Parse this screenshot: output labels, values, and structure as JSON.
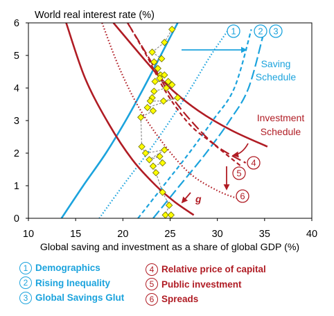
{
  "chart_data": {
    "type": "line",
    "ylabel": "World real interest rate (%)",
    "xlabel": "Global saving and investment as a share of global GDP (%)",
    "xlim": [
      10,
      40
    ],
    "ylim": [
      0,
      6
    ],
    "xticks": [
      "10",
      "15",
      "20",
      "25",
      "30",
      "35",
      "40"
    ],
    "yticks": [
      "0",
      "1",
      "2",
      "3",
      "4",
      "5",
      "6"
    ],
    "grid": false,
    "series": [
      {
        "name": "Saving Schedule",
        "style": "solid",
        "color": "#1ba3dd",
        "x": [
          13.5,
          15.8,
          18.2,
          20.3,
          22.2,
          24.0,
          25.8
        ],
        "y": [
          0,
          1.0,
          2.0,
          3.0,
          4.0,
          5.0,
          6.0
        ]
      },
      {
        "name": "1",
        "style": "dotted",
        "color": "#1ba3dd",
        "x": [
          17.5,
          20.0,
          22.6,
          25.0,
          27.2,
          29.3,
          31.2
        ],
        "y": [
          0,
          1.0,
          2.0,
          3.0,
          4.0,
          5.0,
          5.8
        ]
      },
      {
        "name": "2",
        "style": "dashed-short",
        "color": "#1ba3dd",
        "x": [
          21.6,
          24.3,
          27.0,
          29.5,
          31.8,
          33.6
        ],
        "y": [
          0,
          1.0,
          2.0,
          3.0,
          4.0,
          5.8
        ]
      },
      {
        "name": "3",
        "style": "dashed-long",
        "color": "#1ba3dd",
        "x": [
          23.2,
          26.0,
          28.8,
          31.3,
          33.3,
          35.0
        ],
        "y": [
          0,
          1.0,
          2.0,
          3.0,
          4.0,
          5.8
        ]
      },
      {
        "name": "Investment Schedule",
        "style": "solid",
        "color": "#b01c24",
        "x": [
          19.0,
          22.5,
          25.0,
          28.0,
          31.5,
          35.3
        ],
        "y": [
          6.0,
          4.8,
          4.0,
          3.3,
          2.7,
          2.2
        ]
      },
      {
        "name": "4",
        "style": "dashed-long",
        "color": "#b01c24",
        "x": [
          20.5,
          22.8,
          25.0,
          27.5,
          30.0,
          33.0
        ],
        "y": [
          6.0,
          4.9,
          3.8,
          2.9,
          2.2,
          1.7
        ]
      },
      {
        "name": "5",
        "style": "dashed-short",
        "color": "#b01c24",
        "x": [
          20.5,
          22.5,
          24.5,
          27.0,
          29.5,
          32.5
        ],
        "y": [
          6.0,
          5.0,
          3.9,
          2.9,
          2.3,
          1.6
        ]
      },
      {
        "name": "6",
        "style": "dotted",
        "color": "#b01c24",
        "x": [
          17.8,
          19.5,
          21.5,
          24.0,
          27.0,
          30.0,
          32.2
        ],
        "y": [
          6.0,
          4.7,
          3.5,
          2.4,
          1.4,
          0.85,
          0.6
        ]
      },
      {
        "name": "g",
        "style": "solid",
        "color": "#b01c24",
        "x": [
          14.0,
          16.0,
          18.5,
          21.0,
          23.5,
          25.5,
          27.5
        ],
        "y": [
          6.0,
          4.3,
          2.9,
          1.8,
          1.0,
          0.5,
          0.1
        ]
      }
    ],
    "scatter": {
      "name": "observations",
      "color": "#ffff00",
      "points": [
        [
          25.2,
          5.8
        ],
        [
          24.4,
          5.4
        ],
        [
          23.1,
          5.1
        ],
        [
          24.1,
          4.9
        ],
        [
          23.3,
          4.8
        ],
        [
          23.7,
          4.6
        ],
        [
          24.0,
          4.4
        ],
        [
          24.4,
          4.4
        ],
        [
          23.9,
          4.3
        ],
        [
          23.4,
          4.2
        ],
        [
          24.8,
          4.2
        ],
        [
          25.2,
          4.1
        ],
        [
          24.6,
          4.0
        ],
        [
          23.3,
          3.9
        ],
        [
          23.1,
          3.7
        ],
        [
          22.9,
          3.6
        ],
        [
          24.3,
          3.6
        ],
        [
          25.8,
          3.7
        ],
        [
          22.6,
          3.4
        ],
        [
          23.2,
          3.3
        ],
        [
          21.9,
          3.1
        ],
        [
          22.0,
          2.2
        ],
        [
          22.4,
          2.0
        ],
        [
          24.4,
          2.1
        ],
        [
          22.8,
          1.8
        ],
        [
          23.9,
          1.9
        ],
        [
          24.2,
          1.7
        ],
        [
          23.2,
          1.6
        ],
        [
          23.5,
          1.4
        ],
        [
          24.2,
          0.8
        ],
        [
          24.9,
          0.4
        ],
        [
          24.5,
          0.1
        ],
        [
          25.1,
          0.1
        ]
      ]
    },
    "annotations": [
      {
        "text": "Saving",
        "color": "#1ba3dd"
      },
      {
        "text": "Schedule",
        "color": "#1ba3dd"
      },
      {
        "text": "Investment",
        "color": "#b01c24"
      },
      {
        "text": "Schedule",
        "color": "#b01c24"
      },
      {
        "text": "1",
        "color": "#1ba3dd"
      },
      {
        "text": "2",
        "color": "#1ba3dd"
      },
      {
        "text": "3",
        "color": "#1ba3dd"
      },
      {
        "text": "4",
        "color": "#b01c24"
      },
      {
        "text": "5",
        "color": "#b01c24"
      },
      {
        "text": "6",
        "color": "#b01c24"
      },
      {
        "text": "g",
        "color": "#b01c24"
      }
    ]
  },
  "legend_saving": [
    {
      "num": "1",
      "label": "Demographics"
    },
    {
      "num": "2",
      "label": "Rising Inequality"
    },
    {
      "num": "3",
      "label": "Global Savings Glut"
    }
  ],
  "legend_investment": [
    {
      "num": "4",
      "label": "Relative price of capital"
    },
    {
      "num": "5",
      "label": "Public investment"
    },
    {
      "num": "6",
      "label": "Spreads"
    }
  ],
  "colors": {
    "saving": "#1ba3dd",
    "investment": "#b01c24",
    "axis": "#000000"
  }
}
